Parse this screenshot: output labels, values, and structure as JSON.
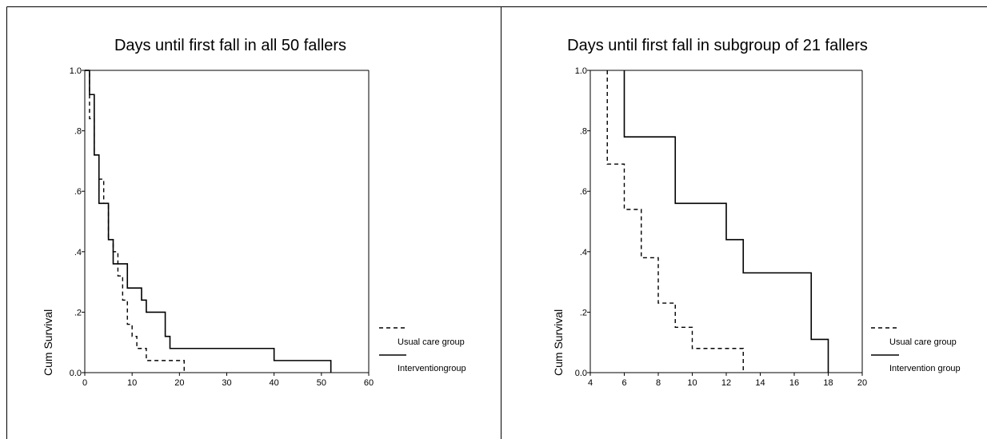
{
  "chart_data": [
    {
      "type": "line",
      "step": true,
      "title": "Days until first fall in all 50 fallers",
      "xlabel": "",
      "ylabel": "Cum Survival",
      "xlim": [
        0,
        60
      ],
      "ylim": [
        0,
        1
      ],
      "x_ticks": [
        0,
        10,
        20,
        30,
        40,
        50,
        60
      ],
      "x_tick_labels": [
        "0",
        "10",
        "20",
        "30",
        "40",
        "50",
        "60"
      ],
      "y_ticks": [
        0,
        0.2,
        0.4,
        0.6,
        0.8,
        1.0
      ],
      "y_tick_labels": [
        "0.0",
        ".2",
        ".4",
        ".6",
        ".8",
        "1.0"
      ],
      "legend_position": "right",
      "series": [
        {
          "name": "Usual care group",
          "style": "dashed",
          "points": [
            [
              0,
              1.0
            ],
            [
              1,
              0.84
            ],
            [
              2,
              0.72
            ],
            [
              3,
              0.64
            ],
            [
              4,
              0.56
            ],
            [
              5,
              0.44
            ],
            [
              6,
              0.4
            ],
            [
              7,
              0.32
            ],
            [
              8,
              0.24
            ],
            [
              9,
              0.16
            ],
            [
              10,
              0.12
            ],
            [
              11,
              0.08
            ],
            [
              13,
              0.04
            ],
            [
              21,
              0.0
            ]
          ]
        },
        {
          "name": "Interventiongroup",
          "style": "solid",
          "points": [
            [
              0,
              1.0
            ],
            [
              1,
              0.92
            ],
            [
              2,
              0.72
            ],
            [
              3,
              0.56
            ],
            [
              5,
              0.44
            ],
            [
              6,
              0.36
            ],
            [
              9,
              0.28
            ],
            [
              12,
              0.24
            ],
            [
              13,
              0.2
            ],
            [
              17,
              0.12
            ],
            [
              18,
              0.08
            ],
            [
              40,
              0.04
            ],
            [
              52,
              0.0
            ]
          ]
        }
      ]
    },
    {
      "type": "line",
      "step": true,
      "title": "Days until first fall in subgroup of 21 fallers",
      "xlabel": "",
      "ylabel": "Cum Survival",
      "xlim": [
        4,
        20
      ],
      "ylim": [
        0,
        1
      ],
      "x_ticks": [
        4,
        6,
        8,
        10,
        12,
        14,
        16,
        18,
        20
      ],
      "x_tick_labels": [
        "4",
        "6",
        "8",
        "10",
        "12",
        "14",
        "16",
        "18",
        "20"
      ],
      "y_ticks": [
        0,
        0.2,
        0.4,
        0.6,
        0.8,
        1.0
      ],
      "y_tick_labels": [
        "0.0",
        ".2",
        ".4",
        ".6",
        ".8",
        "1.0"
      ],
      "legend_position": "right",
      "series": [
        {
          "name": "Usual care group",
          "style": "dashed",
          "points": [
            [
              5,
              1.0
            ],
            [
              5,
              0.69
            ],
            [
              6,
              0.54
            ],
            [
              7,
              0.38
            ],
            [
              8,
              0.23
            ],
            [
              9,
              0.15
            ],
            [
              10,
              0.08
            ],
            [
              13,
              0.0
            ]
          ]
        },
        {
          "name": "Intervention group",
          "style": "solid",
          "points": [
            [
              6,
              1.0
            ],
            [
              6,
              0.78
            ],
            [
              9,
              0.56
            ],
            [
              12,
              0.44
            ],
            [
              13,
              0.33
            ],
            [
              17,
              0.11
            ],
            [
              18,
              0.0
            ]
          ]
        }
      ]
    }
  ]
}
